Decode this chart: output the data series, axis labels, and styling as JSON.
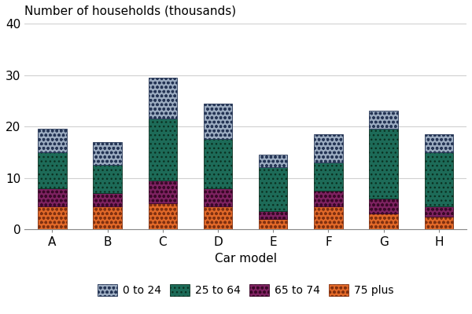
{
  "categories": [
    "A",
    "B",
    "C",
    "D",
    "E",
    "F",
    "G",
    "H"
  ],
  "series_order": [
    "75 plus",
    "65 to 74",
    "25 to 64",
    "0 to 24"
  ],
  "series": {
    "0 to 24": [
      4.5,
      4.5,
      8.0,
      7.0,
      2.5,
      5.5,
      3.5,
      3.5
    ],
    "25 to 64": [
      7.0,
      5.5,
      12.0,
      9.5,
      8.5,
      5.5,
      13.5,
      10.5
    ],
    "65 to 74": [
      3.5,
      2.5,
      4.5,
      3.5,
      1.5,
      3.0,
      3.0,
      2.0
    ],
    "75 plus": [
      4.5,
      4.5,
      5.0,
      4.5,
      2.0,
      4.5,
      3.0,
      2.5
    ]
  },
  "facecolors": {
    "0 to 24": "#8a9db8",
    "25 to 64": "#1a6b5a",
    "65 to 74": "#8a2060",
    "75 plus": "#e06020"
  },
  "edgecolors": {
    "0 to 24": "#2a3a6a",
    "25 to 64": "#0a4a3a",
    "65 to 74": "#5a0a3a",
    "75 plus": "#a03010"
  },
  "hatch_face": {
    "0 to 24": "#c0ccd8",
    "25 to 64": "#2a8a78",
    "65 to 74": "#c06090",
    "75 plus": "#f0a080"
  },
  "ylabel": "Number of households (thousands)",
  "xlabel": "Car model",
  "ylim": [
    0,
    40
  ],
  "yticks": [
    0,
    10,
    20,
    30,
    40
  ],
  "bar_width": 0.52,
  "legend_labels": [
    "0 to 24",
    "25 to 64",
    "65 to 74",
    "75 plus"
  ],
  "background_color": "#ffffff"
}
